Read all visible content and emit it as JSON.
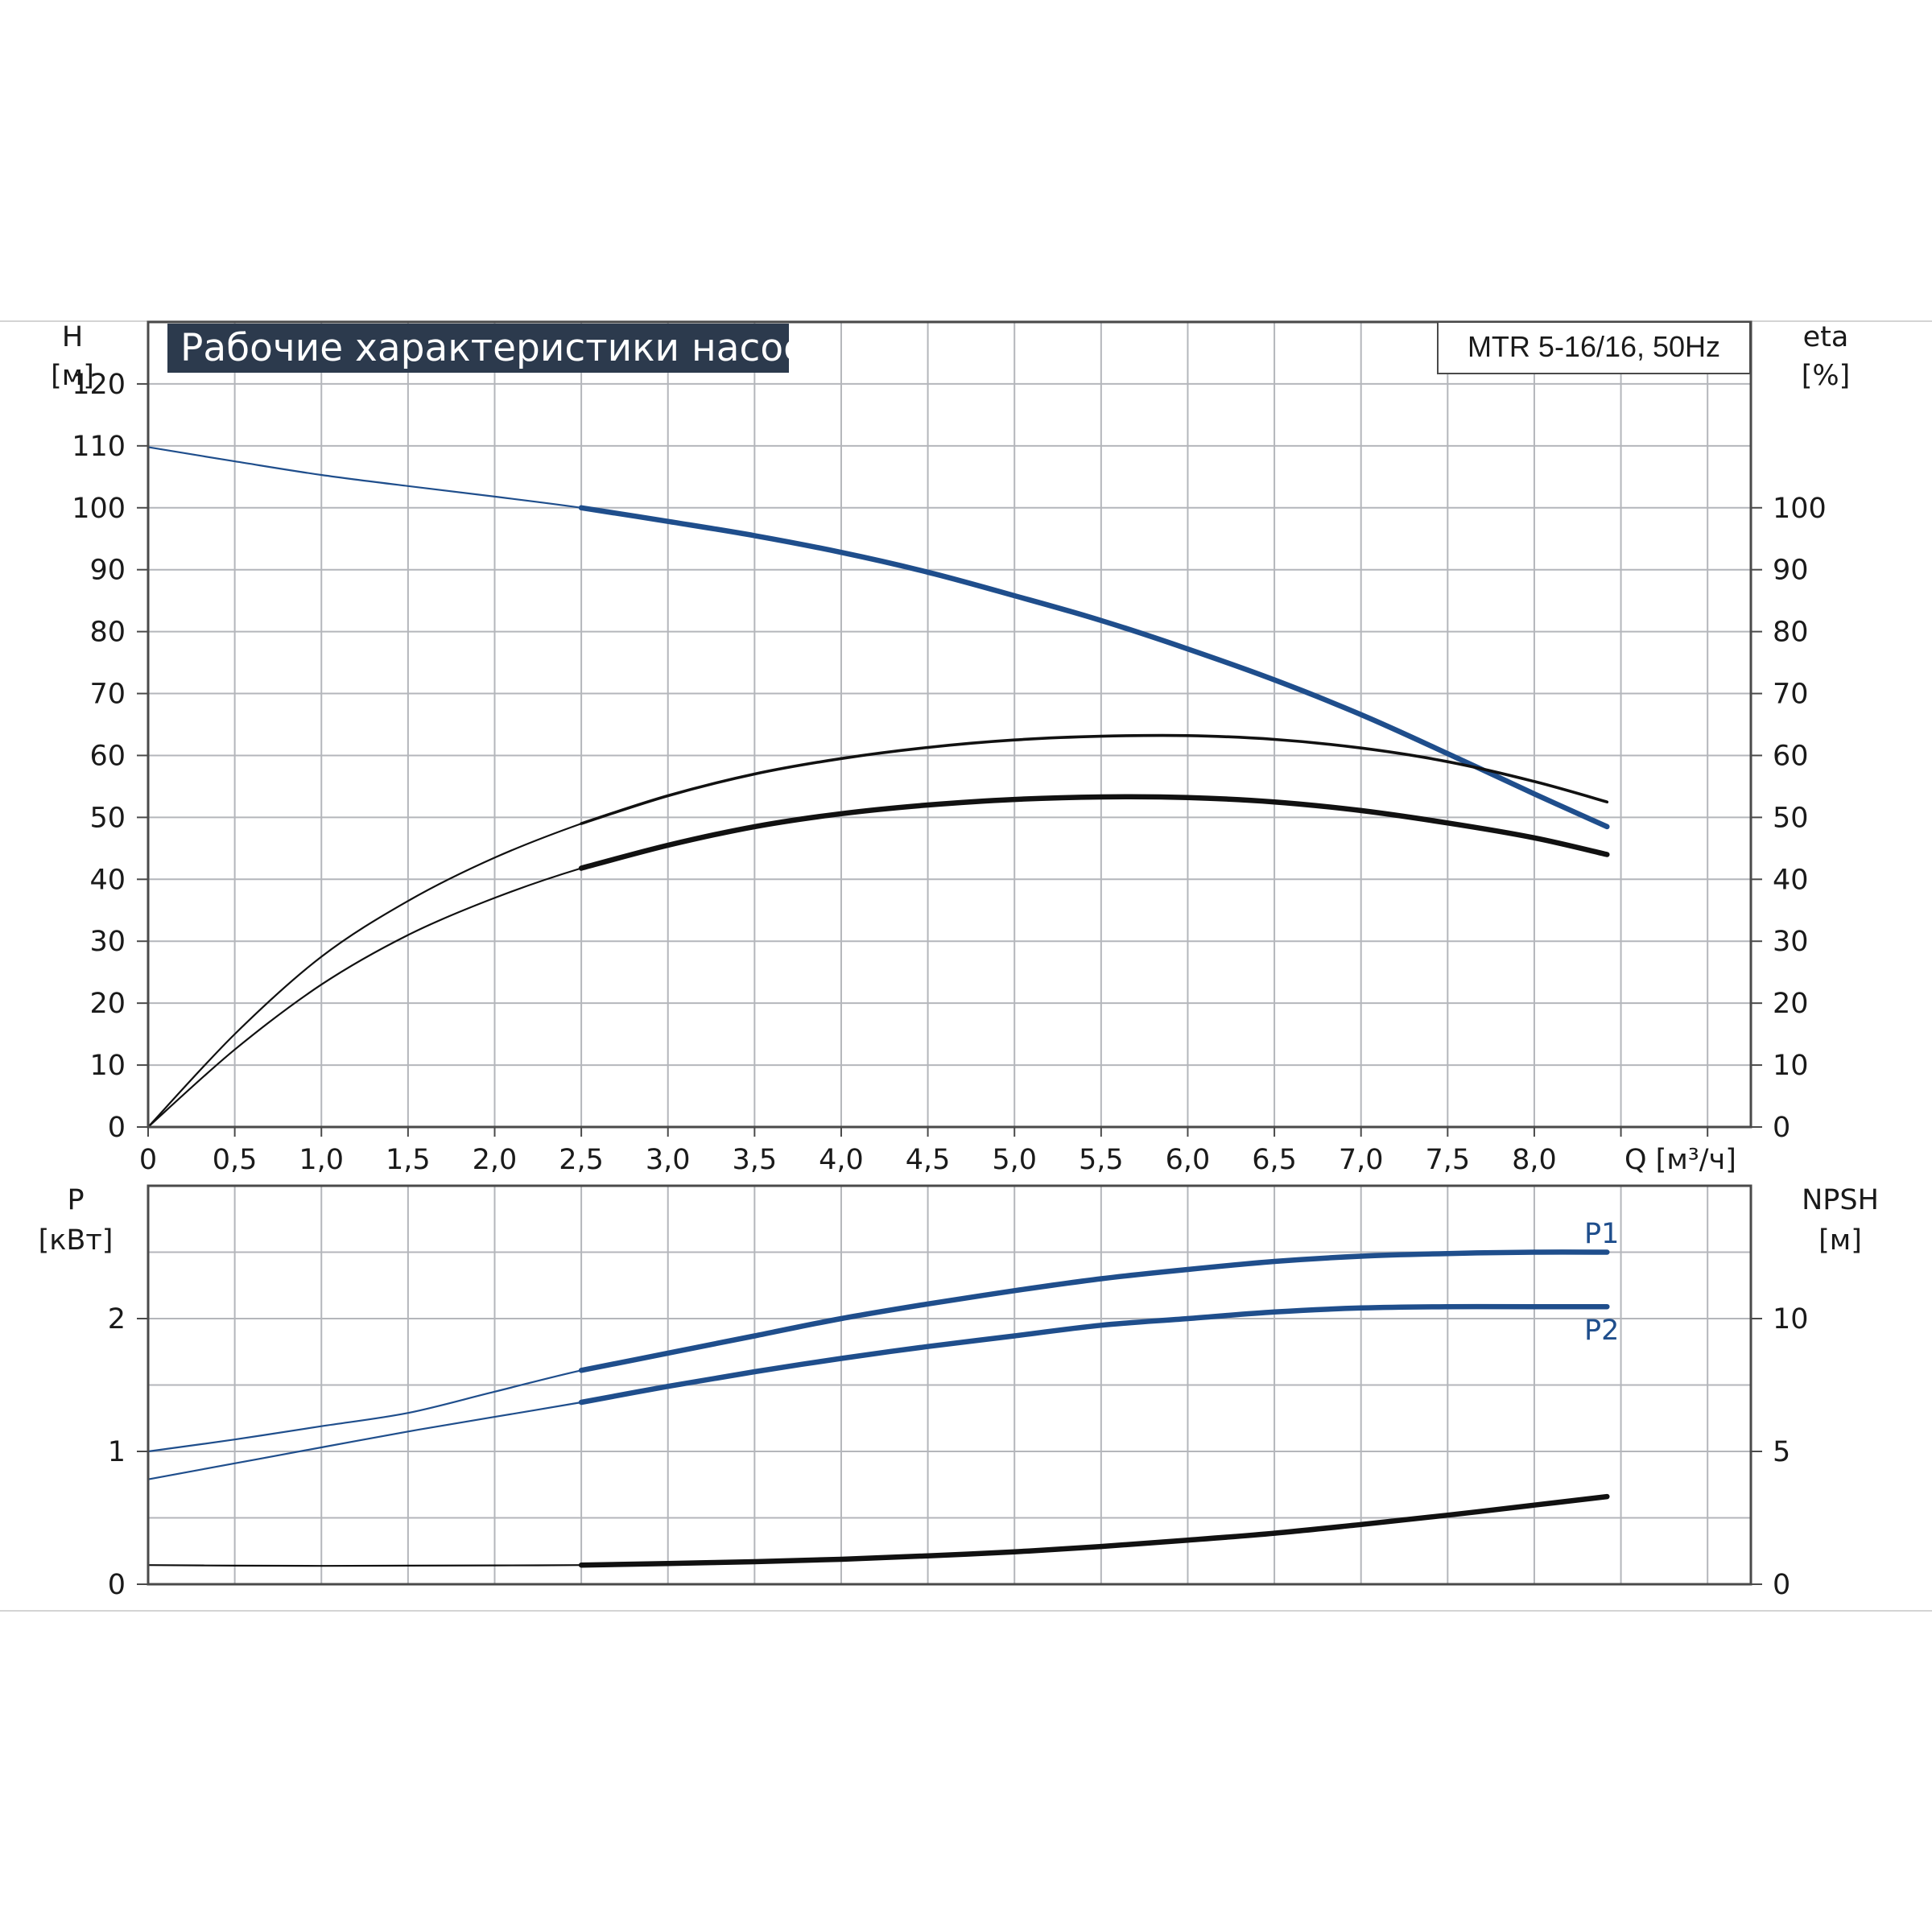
{
  "chart_title": "Рабочие характеристики насоса",
  "model_label": "MTR 5-16/16, 50Hz",
  "colors": {
    "blue": "#1f4e8c",
    "black": "#111111",
    "grid": "#b4b6bb",
    "title_bg": "#2c3a4d"
  },
  "axes": {
    "h_label": "H",
    "h_unit": "[м]",
    "eta_label": "eta",
    "eta_unit": "[%]",
    "q_label": "Q [м³/ч]",
    "p_label": "P",
    "p_unit": "[кВт]",
    "npsh_label": "NPSH",
    "npsh_unit": "[м]"
  },
  "chart_data": [
    {
      "type": "line",
      "title": "Рабочие характеристики насоса",
      "xlabel": "Q [м³/ч]",
      "ylabel": "H [м]",
      "y2label": "eta [%]",
      "xlim": [
        0,
        9.25
      ],
      "ylim": [
        0,
        130
      ],
      "y2lim": [
        0,
        130
      ],
      "x_ticks": [
        "0",
        "0,5",
        "1,0",
        "1,5",
        "2,0",
        "2,5",
        "3,0",
        "3,5",
        "4,0",
        "4,5",
        "5,0",
        "5,5",
        "6,0",
        "6,5",
        "7,0",
        "7,5",
        "8,0"
      ],
      "y_ticks": [
        0,
        10,
        20,
        30,
        40,
        50,
        60,
        70,
        80,
        90,
        100,
        110,
        120
      ],
      "y2_ticks": [
        0,
        10,
        20,
        30,
        40,
        50,
        60,
        70,
        80,
        90,
        100
      ],
      "series": [
        {
          "key": "H",
          "axis": "left",
          "color": "blue",
          "thick_from": 2.5,
          "x": [
            0,
            0.5,
            1.0,
            1.5,
            2.0,
            2.5,
            3.0,
            3.5,
            4.0,
            4.5,
            5.0,
            5.5,
            6.0,
            6.5,
            7.0,
            7.5,
            8.0,
            8.42
          ],
          "y": [
            109.8,
            107.5,
            105.3,
            103.5,
            101.8,
            100.0,
            97.8,
            95.5,
            92.8,
            89.6,
            85.8,
            81.8,
            77.2,
            72.2,
            66.6,
            60.3,
            53.8,
            48.5
          ]
        },
        {
          "key": "eta1",
          "axis": "right",
          "color": "black",
          "thick_from": 2.5,
          "weight": "thin",
          "x": [
            0,
            0.5,
            1.0,
            1.5,
            2.0,
            2.5,
            3.0,
            3.5,
            4.0,
            4.5,
            5.0,
            5.5,
            6.0,
            6.5,
            7.0,
            7.5,
            8.0,
            8.42
          ],
          "y": [
            0,
            15,
            27.5,
            36.5,
            43.5,
            49,
            53.5,
            57,
            59.5,
            61.3,
            62.5,
            63.1,
            63.2,
            62.6,
            61.2,
            59,
            55.8,
            52.5
          ]
        },
        {
          "key": "eta2",
          "axis": "right",
          "color": "black",
          "thick_from": 2.5,
          "weight": "thick",
          "x": [
            0,
            0.5,
            1.0,
            1.5,
            2.0,
            2.5,
            3.0,
            3.5,
            4.0,
            4.5,
            5.0,
            5.5,
            6.0,
            6.5,
            7.0,
            7.5,
            8.0,
            8.42
          ],
          "y": [
            0,
            12.5,
            23,
            31,
            37,
            41.8,
            45.5,
            48.5,
            50.6,
            52,
            52.9,
            53.3,
            53.2,
            52.5,
            51.1,
            49.1,
            46.7,
            44
          ]
        }
      ]
    },
    {
      "type": "line",
      "xlabel": "Q [м³/ч]",
      "ylabel": "P [кВт]",
      "y2label": "NPSH [м]",
      "xlim": [
        0,
        9.25
      ],
      "ylim": [
        0,
        3.0
      ],
      "y2lim": [
        0,
        15
      ],
      "y_ticks": [
        0,
        1,
        2
      ],
      "y2_ticks": [
        0,
        5,
        10
      ],
      "series": [
        {
          "key": "P1",
          "name": "P1",
          "axis": "left",
          "color": "blue",
          "thick_from": 2.5,
          "x": [
            0,
            0.5,
            1.0,
            1.5,
            2.0,
            2.5,
            3.0,
            3.5,
            4.0,
            4.5,
            5.0,
            5.5,
            6.0,
            6.5,
            7.0,
            7.5,
            8.0,
            8.42
          ],
          "y": [
            1.0,
            1.09,
            1.19,
            1.29,
            1.45,
            1.61,
            1.74,
            1.87,
            2.0,
            2.11,
            2.21,
            2.3,
            2.37,
            2.43,
            2.47,
            2.49,
            2.5,
            2.5
          ]
        },
        {
          "key": "P2",
          "name": "P2",
          "axis": "left",
          "color": "blue",
          "thick_from": 2.5,
          "x": [
            0,
            0.5,
            1.0,
            1.5,
            2.0,
            2.5,
            3.0,
            3.5,
            4.0,
            4.5,
            5.0,
            5.5,
            6.0,
            6.5,
            7.0,
            7.5,
            8.0,
            8.42
          ],
          "y": [
            0.79,
            0.91,
            1.03,
            1.15,
            1.26,
            1.37,
            1.49,
            1.6,
            1.7,
            1.79,
            1.87,
            1.95,
            2.0,
            2.05,
            2.08,
            2.09,
            2.09,
            2.09
          ]
        },
        {
          "key": "NPSH",
          "axis": "right",
          "color": "black",
          "thick_from": 2.5,
          "x": [
            0,
            0.5,
            1.0,
            1.5,
            2.0,
            2.5,
            3.0,
            3.5,
            4.0,
            4.5,
            5.0,
            5.5,
            6.0,
            6.5,
            7.0,
            7.5,
            8.0,
            8.42
          ],
          "y": [
            0.72,
            0.7,
            0.69,
            0.7,
            0.71,
            0.72,
            0.78,
            0.85,
            0.94,
            1.07,
            1.22,
            1.42,
            1.66,
            1.92,
            2.25,
            2.6,
            2.98,
            3.3
          ]
        }
      ]
    }
  ]
}
